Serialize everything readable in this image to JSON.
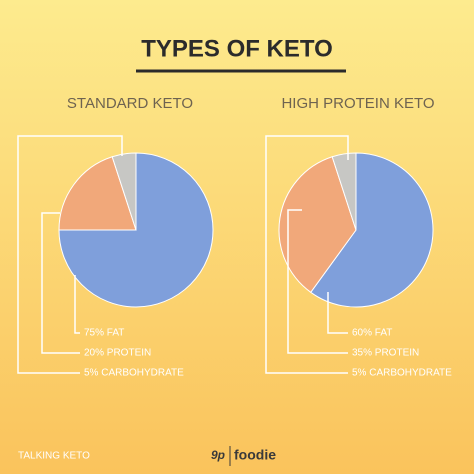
{
  "title": "TYPES OF KETO",
  "footer": "TALKING KETO",
  "logo": "foodie",
  "chart_data": [
    {
      "type": "pie",
      "title": "STANDARD KETO",
      "values": [
        75,
        20,
        5
      ],
      "value_labels": [
        "75% FAT",
        "20% PROTEIN",
        "5% CARBOHYDRATE"
      ],
      "colors": [
        "#7f9fdb",
        "#f1a87a",
        "#c7c7c4"
      ]
    },
    {
      "type": "pie",
      "title": "HIGH PROTEIN KETO",
      "values": [
        60,
        35,
        5
      ],
      "value_labels": [
        "60% FAT",
        "35% PROTEIN",
        "5% CARBOHYDRATE"
      ],
      "colors": [
        "#7f9fdb",
        "#f1a87a",
        "#c7c7c4"
      ]
    }
  ]
}
